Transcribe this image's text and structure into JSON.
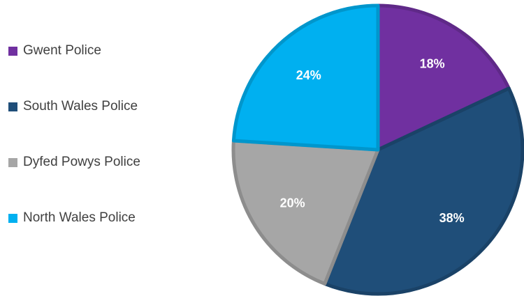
{
  "chart_data": {
    "type": "pie",
    "title": "",
    "legend_position": "left",
    "series": [
      {
        "categories": [
          "Gwent Police",
          "South Wales Police",
          "Dyfed Powys Police",
          "North Wales Police"
        ],
        "values": [
          18,
          38,
          20,
          24
        ],
        "value_labels": [
          "18%",
          "38%",
          "20%",
          "24%"
        ],
        "colors": [
          "#7030A0",
          "#1F4E79",
          "#A6A6A6",
          "#00B0F0"
        ]
      }
    ]
  },
  "legend": {
    "items": [
      {
        "label": "Gwent Police",
        "color": "#7030A0"
      },
      {
        "label": "South Wales Police",
        "color": "#1F4E79"
      },
      {
        "label": "Dyfed Powys Police",
        "color": "#A6A6A6"
      },
      {
        "label": "North Wales Police",
        "color": "#00B0F0"
      }
    ]
  }
}
